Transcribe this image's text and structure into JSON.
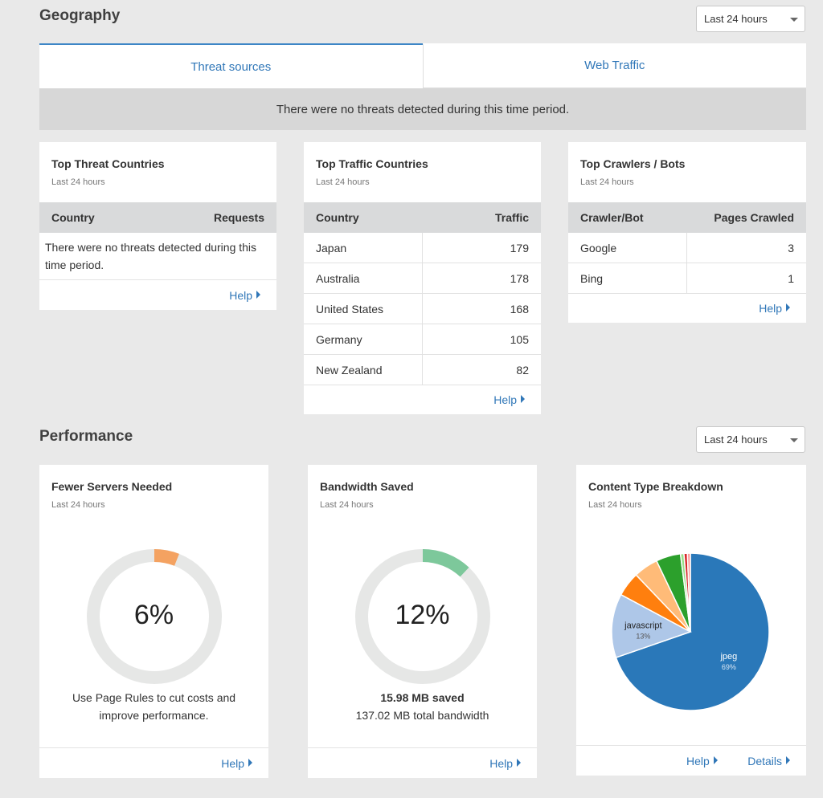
{
  "geography": {
    "title": "Geography",
    "range": "Last 24 hours",
    "tabs": [
      "Threat sources",
      "Web Traffic"
    ],
    "notice": "There were no threats detected during this time period.",
    "threat_card": {
      "title": "Top Threat Countries",
      "sub": "Last 24 hours",
      "col1": "Country",
      "col2": "Requests",
      "empty": "There were no threats detected during this time period.",
      "help": "Help"
    },
    "traffic_card": {
      "title": "Top Traffic Countries",
      "sub": "Last 24 hours",
      "col1": "Country",
      "col2": "Traffic",
      "rows": [
        {
          "name": "Japan",
          "value": "179"
        },
        {
          "name": "Australia",
          "value": "178"
        },
        {
          "name": "United States",
          "value": "168"
        },
        {
          "name": "Germany",
          "value": "105"
        },
        {
          "name": "New Zealand",
          "value": "82"
        }
      ],
      "help": "Help"
    },
    "crawler_card": {
      "title": "Top Crawlers / Bots",
      "sub": "Last 24 hours",
      "col1": "Crawler/Bot",
      "col2": "Pages Crawled",
      "rows": [
        {
          "name": "Google",
          "value": "3"
        },
        {
          "name": "Bing",
          "value": "1"
        }
      ],
      "help": "Help"
    }
  },
  "performance": {
    "title": "Performance",
    "range": "Last 24 hours",
    "servers": {
      "title": "Fewer Servers Needed",
      "sub": "Last 24 hours",
      "value_label": "6%",
      "fraction": 0.06,
      "color": "#f4a261",
      "text1": "Use Page Rules to cut costs and",
      "text2": "improve performance.",
      "help": "Help"
    },
    "bandwidth": {
      "title": "Bandwidth Saved",
      "sub": "Last 24 hours",
      "value_label": "12%",
      "fraction": 0.12,
      "color": "#7dc89b",
      "saved": "15.98 MB saved",
      "total": "137.02 MB total bandwidth",
      "help": "Help"
    },
    "content": {
      "title": "Content Type Breakdown",
      "sub": "Last 24 hours",
      "help": "Help",
      "details": "Details"
    }
  },
  "chart_data": {
    "type": "pie",
    "slices": [
      {
        "label": "jpeg",
        "pct_label": "69%",
        "value": 69,
        "color": "#2a78b9"
      },
      {
        "label": "javascript",
        "pct_label": "13%",
        "value": 13,
        "color": "#aec7e8"
      },
      {
        "label": "",
        "value": 5,
        "color": "#ff7f0e"
      },
      {
        "label": "",
        "value": 5,
        "color": "#ffbb78"
      },
      {
        "label": "",
        "value": 5,
        "color": "#2ca02c"
      },
      {
        "label": "",
        "value": 0.7,
        "color": "#98df8a"
      },
      {
        "label": "",
        "value": 0.7,
        "color": "#d62728"
      },
      {
        "label": "",
        "value": 0.6,
        "color": "#ff9896"
      }
    ]
  }
}
